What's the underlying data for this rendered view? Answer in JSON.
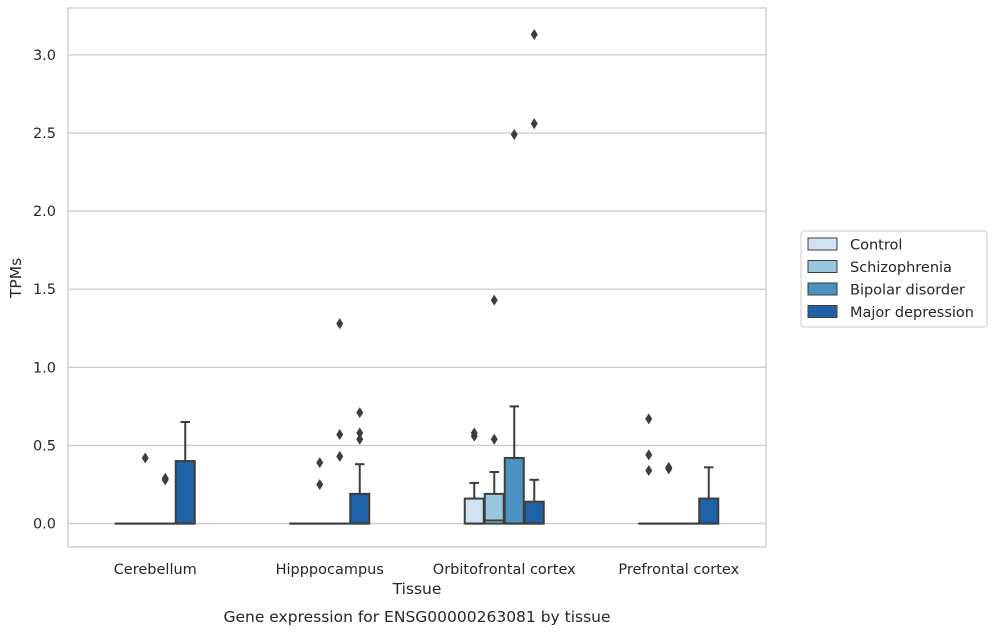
{
  "caption": "Gene expression for ENSG00000263081 by tissue",
  "chart_data": {
    "type": "box",
    "title": "",
    "xlabel": "Tissue",
    "ylabel": "TPMs",
    "ylim": [
      -0.15,
      3.3
    ],
    "yticks": [
      0.0,
      0.5,
      1.0,
      1.5,
      2.0,
      2.5,
      3.0
    ],
    "ytick_labels": [
      "0.0",
      "0.5",
      "1.0",
      "1.5",
      "2.0",
      "2.5",
      "3.0"
    ],
    "grid": "horizontal",
    "legend_position": "right",
    "categories": [
      "Cerebellum",
      "Hipppocampus",
      "Orbitofrontal cortex",
      "Prefrontal cortex"
    ],
    "series": [
      {
        "name": "Control",
        "color": "#d1e2f2",
        "boxes": [
          {
            "q1": 0,
            "median": 0,
            "q3": 0,
            "whisker_low": 0,
            "whisker_high": 0,
            "outliers": []
          },
          {
            "q1": 0,
            "median": 0,
            "q3": 0,
            "whisker_low": 0,
            "whisker_high": 0,
            "outliers": []
          },
          {
            "q1": 0,
            "median": 0,
            "q3": 0.16,
            "whisker_low": 0,
            "whisker_high": 0.26,
            "outliers": [
              0.56,
              0.58
            ]
          },
          {
            "q1": 0,
            "median": 0,
            "q3": 0,
            "whisker_low": 0,
            "whisker_high": 0,
            "outliers": [
              0.34,
              0.44,
              0.67
            ]
          }
        ]
      },
      {
        "name": "Schizophrenia",
        "color": "#9ac7e0",
        "boxes": [
          {
            "q1": 0,
            "median": 0,
            "q3": 0,
            "whisker_low": 0,
            "whisker_high": 0,
            "outliers": [
              0.42
            ]
          },
          {
            "q1": 0,
            "median": 0,
            "q3": 0,
            "whisker_low": 0,
            "whisker_high": 0,
            "outliers": [
              0.25,
              0.39
            ]
          },
          {
            "q1": 0,
            "median": 0.02,
            "q3": 0.19,
            "whisker_low": 0,
            "whisker_high": 0.33,
            "outliers": [
              0.54,
              1.43
            ]
          },
          {
            "q1": 0,
            "median": 0,
            "q3": 0,
            "whisker_low": 0,
            "whisker_high": 0,
            "outliers": [
              0.35,
              0.36
            ]
          }
        ]
      },
      {
        "name": "Bipolar disorder",
        "color": "#4b91c2",
        "boxes": [
          {
            "q1": 0,
            "median": 0,
            "q3": 0,
            "whisker_low": 0,
            "whisker_high": 0,
            "outliers": [
              0.28,
              0.29
            ]
          },
          {
            "q1": 0,
            "median": 0,
            "q3": 0,
            "whisker_low": 0,
            "whisker_high": 0,
            "outliers": [
              0.43,
              0.57,
              1.28
            ]
          },
          {
            "q1": 0,
            "median": 0,
            "q3": 0.42,
            "whisker_low": 0,
            "whisker_high": 0.75,
            "outliers": [
              2.49
            ]
          },
          {
            "q1": 0,
            "median": 0,
            "q3": 0,
            "whisker_low": 0,
            "whisker_high": 0,
            "outliers": []
          }
        ]
      },
      {
        "name": "Major depression",
        "color": "#2062a8",
        "boxes": [
          {
            "q1": 0,
            "median": 0,
            "q3": 0.4,
            "whisker_low": 0,
            "whisker_high": 0.65,
            "outliers": []
          },
          {
            "q1": 0,
            "median": 0,
            "q3": 0.19,
            "whisker_low": 0,
            "whisker_high": 0.38,
            "outliers": [
              0.54,
              0.58,
              0.71
            ]
          },
          {
            "q1": 0,
            "median": 0,
            "q3": 0.14,
            "whisker_low": 0,
            "whisker_high": 0.28,
            "outliers": [
              2.56,
              3.13
            ]
          },
          {
            "q1": 0,
            "median": 0,
            "q3": 0.16,
            "whisker_low": 0,
            "whisker_high": 0.36,
            "outliers": []
          }
        ]
      }
    ]
  }
}
